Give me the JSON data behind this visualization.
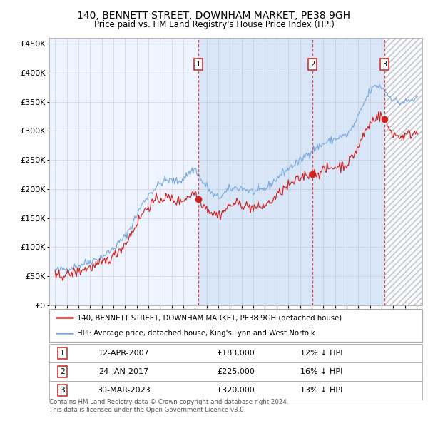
{
  "title1": "140, BENNETT STREET, DOWNHAM MARKET, PE38 9GH",
  "title2": "Price paid vs. HM Land Registry's House Price Index (HPI)",
  "legend_line1": "140, BENNETT STREET, DOWNHAM MARKET, PE38 9GH (detached house)",
  "legend_line2": "HPI: Average price, detached house, King's Lynn and West Norfolk",
  "footer1": "Contains HM Land Registry data © Crown copyright and database right 2024.",
  "footer2": "This data is licensed under the Open Government Licence v3.0.",
  "sale_labels": [
    "1",
    "2",
    "3"
  ],
  "sale_dates": [
    "12-APR-2007",
    "24-JAN-2017",
    "30-MAR-2023"
  ],
  "sale_prices": [
    183000,
    225000,
    320000
  ],
  "sale_hpi_diff": [
    "12% ↓ HPI",
    "16% ↓ HPI",
    "13% ↓ HPI"
  ],
  "sale_years": [
    2007.28,
    2017.07,
    2023.25
  ],
  "hpi_color": "#7aaadd",
  "hpi_fill_color": "#ddeeff",
  "price_color": "#cc2222",
  "vline_color": "#dd4444",
  "bg_color": "#eef4ff",
  "grid_color": "#cccccc",
  "hatch_color": "#aaaaaa",
  "ylim": [
    0,
    460000
  ],
  "yticks": [
    0,
    50000,
    100000,
    150000,
    200000,
    250000,
    300000,
    350000,
    400000,
    450000
  ],
  "xlim_start": 1994.5,
  "xlim_end": 2026.5,
  "xticks": [
    1995,
    1996,
    1997,
    1998,
    1999,
    2000,
    2001,
    2002,
    2003,
    2004,
    2005,
    2006,
    2007,
    2008,
    2009,
    2010,
    2011,
    2012,
    2013,
    2014,
    2015,
    2016,
    2017,
    2018,
    2019,
    2020,
    2021,
    2022,
    2023,
    2024,
    2025,
    2026
  ]
}
